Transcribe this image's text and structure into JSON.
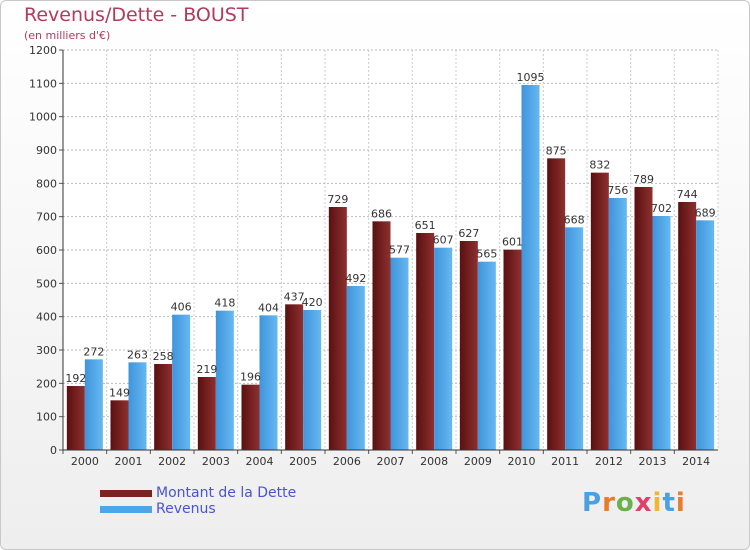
{
  "title": "Revenus/Dette - BOUST",
  "subtitle": "(en milliers d'€)",
  "brand": "Proxiti",
  "colors": {
    "debt": "#7b2323",
    "revenue": "#4da6e8",
    "title": "#b33a5a",
    "legend_text": "#4a54d2"
  },
  "chart_data": {
    "type": "bar",
    "categories": [
      "2000",
      "2001",
      "2002",
      "2003",
      "2004",
      "2005",
      "2006",
      "2007",
      "2008",
      "2009",
      "2010",
      "2011",
      "2012",
      "2013",
      "2014"
    ],
    "series": [
      {
        "name": "Montant de la Dette",
        "values": [
          192,
          149,
          258,
          219,
          196,
          437,
          729,
          686,
          651,
          627,
          601,
          875,
          832,
          789,
          744
        ]
      },
      {
        "name": "Revenus",
        "values": [
          272,
          263,
          406,
          418,
          404,
          420,
          492,
          577,
          607,
          565,
          1095,
          668,
          756,
          702,
          689
        ]
      }
    ],
    "title": "Revenus/Dette - BOUST",
    "ylabel": "(en milliers d'€)",
    "ylim": [
      0,
      1200
    ],
    "yticks": [
      0,
      100,
      200,
      300,
      400,
      500,
      600,
      700,
      800,
      900,
      1000,
      1100,
      1200
    ],
    "grid": true,
    "legend": "bottom-left"
  }
}
